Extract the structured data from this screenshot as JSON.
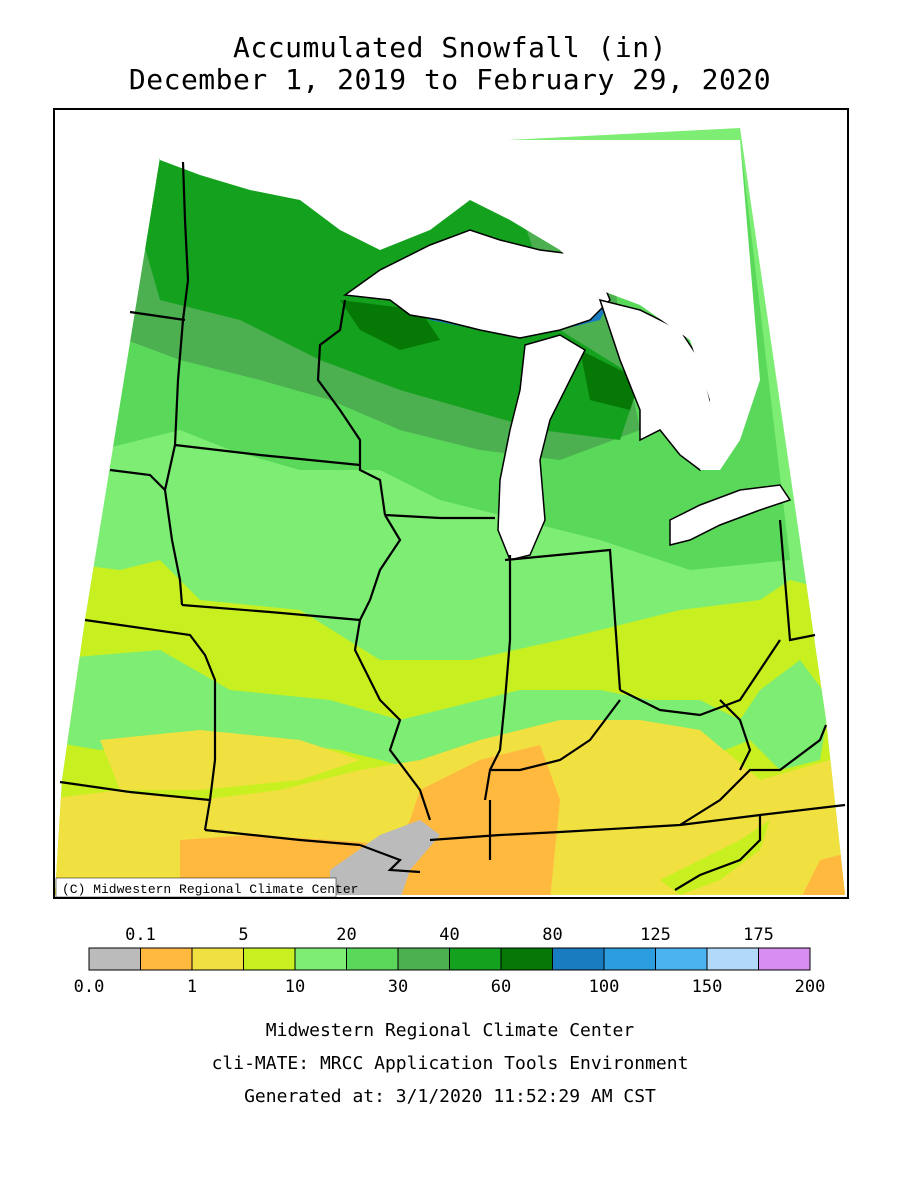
{
  "title": {
    "line1": "Accumulated Snowfall (in)",
    "line2": "December 1, 2019 to February 29, 2020"
  },
  "map": {
    "copyright": "(C) Midwestern Regional Climate Center",
    "regions": "Upper Midwest, Great Lakes"
  },
  "legend": {
    "bins": [
      {
        "color": "#bbbbbb"
      },
      {
        "color": "#ffb93f"
      },
      {
        "color": "#f0e040"
      },
      {
        "color": "#c8f020"
      },
      {
        "color": "#7ded73"
      },
      {
        "color": "#5ad85a"
      },
      {
        "color": "#4caf50"
      },
      {
        "color": "#14a21e"
      },
      {
        "color": "#067806"
      },
      {
        "color": "#1a7cc0"
      },
      {
        "color": "#2c9ee0"
      },
      {
        "color": "#4ab4f0"
      },
      {
        "color": "#b2daf8"
      },
      {
        "color": "#d88ef0"
      }
    ],
    "top_labels": [
      "0.1",
      "5",
      "20",
      "40",
      "80",
      "125",
      "175"
    ],
    "bottom_labels": [
      "0.0",
      "1",
      "10",
      "30",
      "60",
      "100",
      "150",
      "200"
    ]
  },
  "footer": {
    "line1": "Midwestern Regional Climate Center",
    "line2": "cli-MATE: MRCC Application Tools Environment",
    "line3": "Generated at: 3/1/2020 11:52:29 AM CST"
  }
}
